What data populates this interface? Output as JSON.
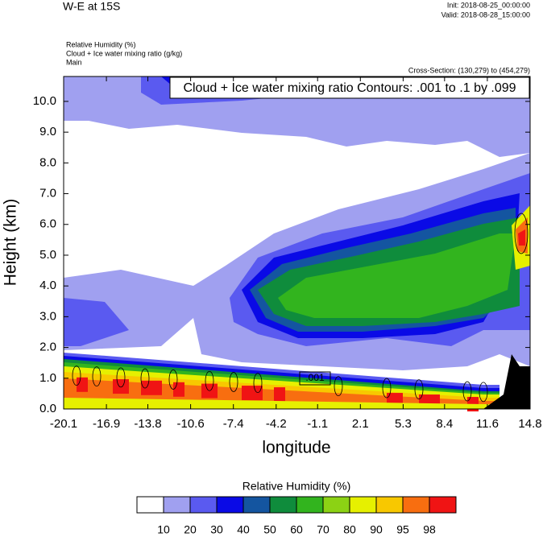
{
  "chart_data": {
    "type": "contour",
    "title": "W-E at 15S",
    "init": "Init: 2018-08-25_00:00:00",
    "valid": "Valid: 2018-08-28_15:00:00",
    "fields": [
      "Relative Humidity   (%)",
      "Cloud + Ice water mixing ratio   (g/kg)",
      "Main"
    ],
    "cross_section": "Cross-Section: (130,279) to (454,279)",
    "contour_info": "Cloud + Ice water mixing ratio Contours: .001 to .1 by .099",
    "contour_label": ".001",
    "xlabel": "longitude",
    "ylabel": "Height (km)",
    "xlim": [
      -20.1,
      14.8
    ],
    "xticks": [
      -20.1,
      -16.9,
      -13.8,
      -10.6,
      -7.4,
      -4.2,
      -1.1,
      2.1,
      5.3,
      8.4,
      11.6,
      14.8
    ],
    "ylim": [
      0,
      10.81
    ],
    "yticks": [
      {
        "value": 0,
        "label": "0.0"
      },
      {
        "value": 1,
        "label": "1.0"
      },
      {
        "value": 2,
        "label": "2.0"
      },
      {
        "value": 3,
        "label": "3.0"
      },
      {
        "value": 4,
        "label": "4.0"
      },
      {
        "value": 5,
        "label": "5.0"
      },
      {
        "value": 6,
        "label": "6.0"
      },
      {
        "value": 7,
        "label": "7.0"
      },
      {
        "value": 8,
        "label": "8.0"
      },
      {
        "value": 9,
        "label": "9.0"
      },
      {
        "value": 10,
        "label": "10.0"
      }
    ],
    "colorbar": {
      "title": "Relative Humidity  (%)",
      "levels": [
        10,
        20,
        30,
        40,
        50,
        60,
        70,
        80,
        90,
        95,
        98
      ],
      "colors": [
        "#ffffff",
        "#a0a0f0",
        "#5a5af0",
        "#0a0ae6",
        "#1455a0",
        "#0f8c3c",
        "#32b41e",
        "#8cd214",
        "#e6f000",
        "#f8c800",
        "#f86e10",
        "#f01414"
      ]
    }
  }
}
